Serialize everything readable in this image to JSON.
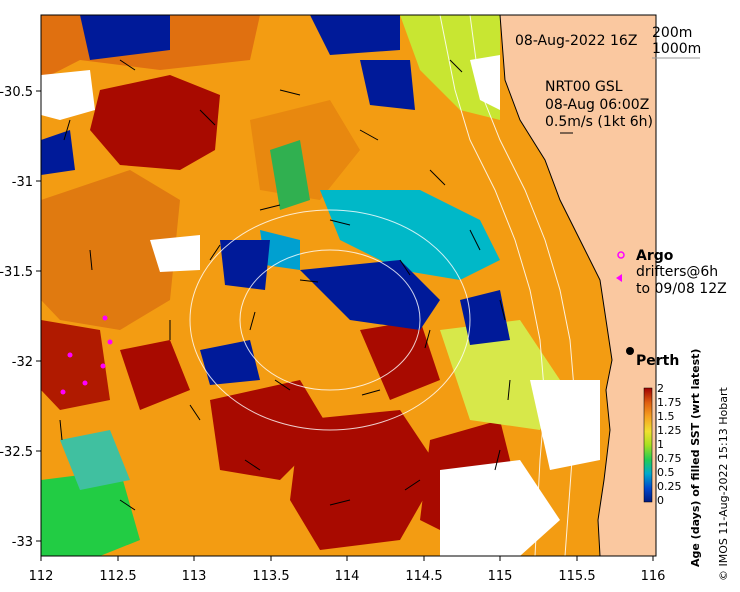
{
  "header": {
    "date": "08-Aug-2022 16Z",
    "contour_a": "200m",
    "contour_b": "1000m"
  },
  "current_note": {
    "line1": "NRT00 GSL",
    "line2": "08-Aug 06:00Z",
    "line3": "0.5m/s (1kt 6h)"
  },
  "legend_markers": {
    "argo": "Argo",
    "drifters_line1": "drifters@6h",
    "drifters_line2": "to 09/08 12Z"
  },
  "city": {
    "name": "Perth"
  },
  "colorbar": {
    "title": "Age (days) of filled SST (wrt latest)",
    "ticks": [
      "2",
      "1.75",
      "1.5",
      "1.25",
      "1",
      "0.75",
      "0.5",
      "0.25",
      "0"
    ]
  },
  "credit": "© IMOS 11-Aug-2022 15:13 Hobart",
  "axes": {
    "x_ticks": [
      "112",
      "112.5",
      "113",
      "113.5",
      "114",
      "114.5",
      "115",
      "115.5",
      "116"
    ],
    "y_ticks": [
      "-30.5",
      "-31",
      "-31.5",
      "-32",
      "-32.5",
      "-33"
    ]
  },
  "colors": {
    "ocean_orange": "#f39c12",
    "land": "#fac8a0",
    "age_high": "#a80a00",
    "age_mid": "#c8e632",
    "age_low": "#00aacc",
    "age_zero": "#001a99",
    "argo_marker": "#ff00ff",
    "drifter_marker": "#ff00ff"
  }
}
